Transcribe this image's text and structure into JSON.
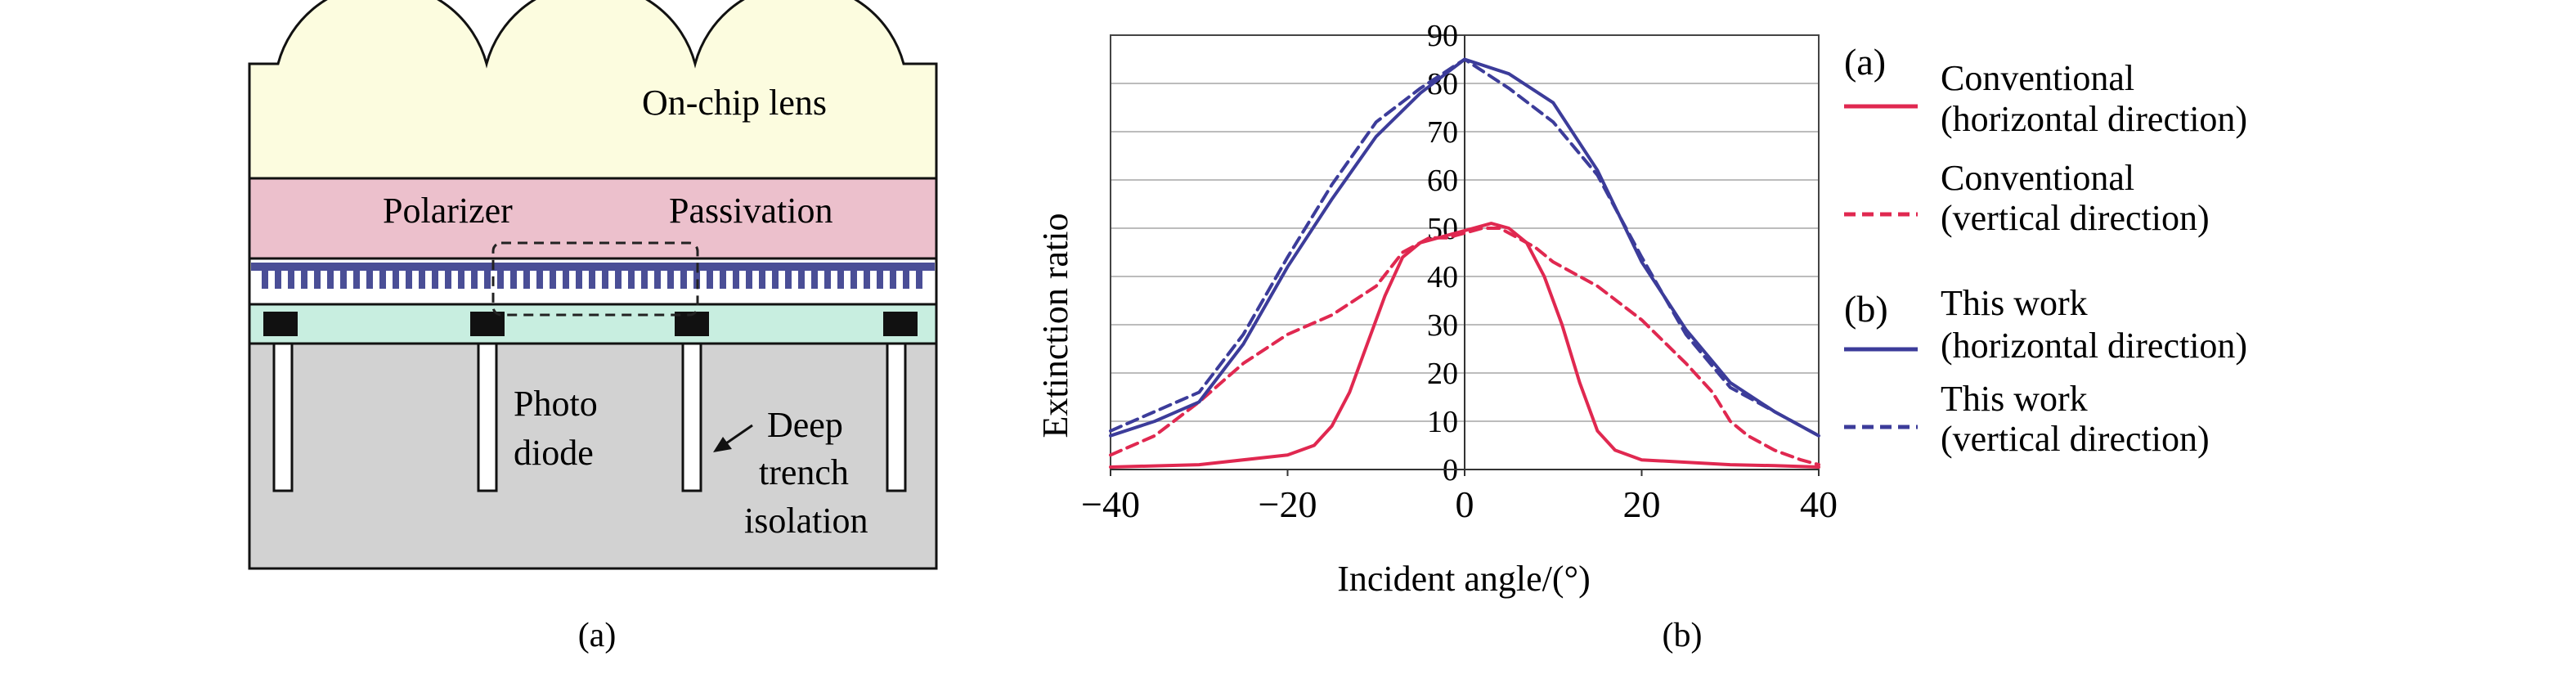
{
  "panel_labels": {
    "a": "(a)",
    "b": "(b)"
  },
  "diagram": {
    "labels": {
      "lens": "On-chip lens",
      "polarizer": "Polarizer",
      "passivation": "Passivation",
      "photodiode_line1": "Photo",
      "photodiode_line2": "diode",
      "dti_line1": "Deep",
      "dti_line2": "trench",
      "dti_line3": "isolation"
    },
    "colors": {
      "lens": "#fcfcdf",
      "passivation": "#ecc0cc",
      "grid": "#4a4e96",
      "filter": "#c8eee0",
      "substrate": "#d2d2d2",
      "metal": "#111111"
    }
  },
  "chart_data": {
    "type": "line",
    "title": "",
    "xlabel": "Incident angle/(°)",
    "ylabel": "Extinction ratio",
    "xlim": [
      -40,
      40
    ],
    "ylim": [
      0,
      90
    ],
    "xticks": [
      -40,
      -20,
      0,
      20,
      40
    ],
    "xtick_labels": [
      "−40",
      "−20",
      "0",
      "20",
      "40"
    ],
    "yticks": [
      0,
      10,
      20,
      30,
      40,
      50,
      60,
      70,
      80,
      90
    ],
    "ytick_labels": [
      "0",
      "10",
      "20",
      "30",
      "40",
      "50",
      "60",
      "70",
      "80",
      "90"
    ],
    "grid": "horizontal",
    "legend_position": "right",
    "legend_groups": [
      {
        "label": "(a)",
        "series": [
          0,
          1
        ]
      },
      {
        "label": "(b)",
        "series": [
          2,
          3
        ]
      }
    ],
    "series": [
      {
        "name_line1": "Conventional",
        "name_line2": "(horizontal direction)",
        "color": "#e02850",
        "dash": "solid",
        "x": [
          -40,
          -30,
          -20,
          -17,
          -15,
          -13,
          -11,
          -9,
          -7,
          -5,
          -3,
          -1,
          0,
          1,
          3,
          5,
          7,
          9,
          11,
          13,
          15,
          17,
          20,
          25,
          30,
          35,
          40
        ],
        "y": [
          0.5,
          1,
          3,
          5,
          9,
          16,
          26,
          36,
          44,
          47,
          48,
          49,
          49.5,
          50,
          51,
          50,
          47,
          40,
          30,
          18,
          8,
          4,
          2,
          1.5,
          1,
          0.8,
          0.5
        ]
      },
      {
        "name_line1": "Conventional",
        "name_line2": "(vertical direction)",
        "color": "#e02850",
        "dash": "dashed",
        "x": [
          -40,
          -35,
          -30,
          -25,
          -20,
          -15,
          -10,
          -7,
          -4,
          -2,
          0,
          2,
          4,
          6,
          8,
          10,
          15,
          20,
          25,
          28,
          30,
          32,
          35,
          38,
          40
        ],
        "y": [
          3,
          7,
          14,
          22,
          28,
          32,
          38,
          45,
          48,
          48,
          49,
          50,
          50,
          48,
          46,
          43,
          38,
          31,
          22,
          16,
          10,
          7,
          4,
          2,
          1
        ]
      },
      {
        "name_line1": "This work",
        "name_line2": "(horizontal direction)",
        "color": "#3c3c9a",
        "dash": "solid",
        "x": [
          -40,
          -35,
          -30,
          -25,
          -20,
          -15,
          -10,
          -5,
          0,
          5,
          10,
          15,
          20,
          25,
          30,
          35,
          40
        ],
        "y": [
          7,
          10,
          14,
          26,
          42,
          56,
          69,
          78,
          85,
          82,
          76,
          62,
          43,
          29,
          18,
          12,
          7
        ]
      },
      {
        "name_line1": "This work",
        "name_line2": "(vertical direction)",
        "color": "#3c3c9a",
        "dash": "dashed",
        "x": [
          -40,
          -35,
          -30,
          -25,
          -20,
          -15,
          -10,
          -5,
          0,
          5,
          10,
          15,
          20,
          25,
          30,
          35,
          40
        ],
        "y": [
          8,
          12,
          16,
          28,
          44,
          59,
          72,
          79,
          85,
          79,
          72,
          61,
          44,
          28,
          17,
          12,
          7
        ]
      }
    ]
  }
}
